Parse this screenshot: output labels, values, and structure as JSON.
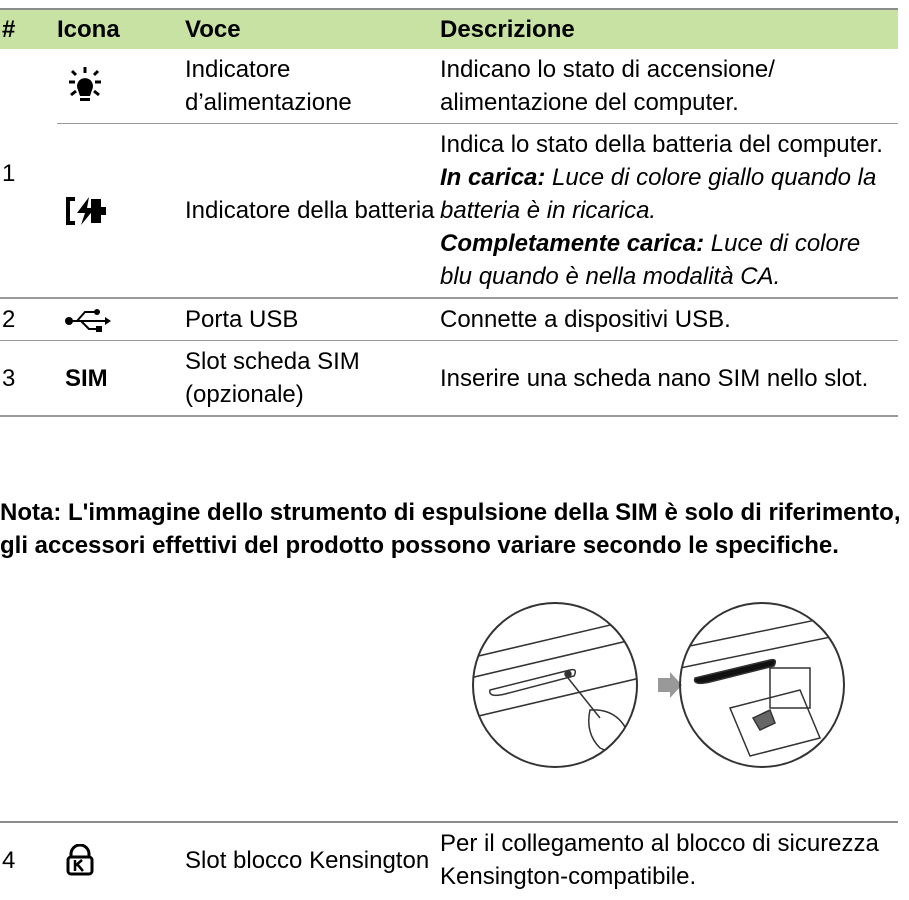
{
  "table": {
    "header": [
      "#",
      "Icona",
      "Voce",
      "Descrizione"
    ],
    "rows": [
      {
        "number": "1",
        "item": "Indicatore d’alimentazione",
        "description": "Indicano lo stato di accensione/ alimentazione del computer."
      },
      {
        "item": "Indicatore della batteria",
        "description": "Indica lo stato della batteria del computer.",
        "charging_label": "In carica:",
        "charging_text": " Luce di colore giallo quando la batteria è in ricarica.",
        "full_label": "Completamente carica:",
        "full_text": " Luce di colore blu quando è nella modalità CA."
      },
      {
        "number": "2",
        "item": "Porta USB",
        "description": "Connette a dispositivi USB."
      },
      {
        "number": "3",
        "icon": "SIM",
        "item": "Slot scheda SIM (opzionale)",
        "description": "Inserire una scheda nano SIM nello slot."
      }
    ]
  },
  "note": "Nota: L'immagine dello strumento di espulsione della SIM è solo di riferimento, gli accessori effettivi del prodotto possono variare secondo le specifiche.",
  "table2": {
    "rows": [
      {
        "number": "4",
        "item": "Slot blocco Kensington",
        "description": "Per il collegamento al blocco di sicurezza Kensington-compatibile."
      }
    ]
  }
}
